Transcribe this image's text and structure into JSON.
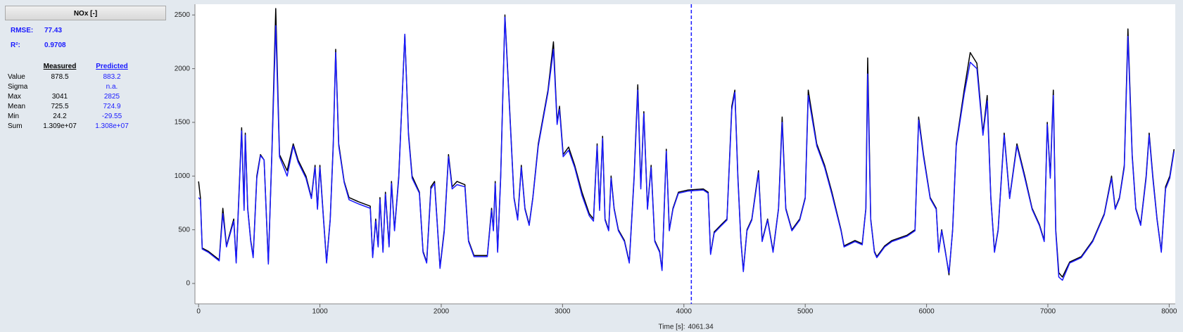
{
  "panel": {
    "title": "NOx [-]",
    "rmse_label": "RMSE:",
    "rmse": "77.43",
    "r2_label": "R²:",
    "r2": "0.9708",
    "columns": [
      "Measured",
      "Predicted"
    ],
    "rows": [
      [
        "Value",
        "878.5",
        "883.2"
      ],
      [
        "Sigma",
        "",
        "n.a."
      ],
      [
        "Max",
        "3041",
        "2825"
      ],
      [
        "Mean",
        "725.5",
        "724.9"
      ],
      [
        "Min",
        "24.2",
        "-29.55"
      ],
      [
        "Sum",
        "1.309e+07",
        "1.308e+07"
      ]
    ]
  },
  "chart_data": {
    "type": "line",
    "x_label": "Time [s]:",
    "cursor_x": 4061.34,
    "cursor_color": "#1a1aff",
    "xlim": [
      -30,
      8050
    ],
    "xticks": [
      0,
      1000,
      2000,
      3000,
      4000,
      5000,
      6000,
      7000,
      8000
    ],
    "ylim": [
      -190,
      2600
    ],
    "yticks": [
      0,
      500,
      1000,
      1500,
      2000,
      2500
    ],
    "grid": false,
    "x": [
      0,
      15,
      30,
      80,
      170,
      200,
      230,
      290,
      310,
      355,
      375,
      385,
      405,
      430,
      450,
      480,
      510,
      540,
      575,
      605,
      636,
      667,
      730,
      780,
      820,
      885,
      930,
      960,
      980,
      1000,
      1030,
      1055,
      1085,
      1110,
      1130,
      1155,
      1200,
      1240,
      1320,
      1415,
      1435,
      1460,
      1480,
      1495,
      1520,
      1540,
      1570,
      1590,
      1615,
      1650,
      1700,
      1730,
      1760,
      1820,
      1850,
      1880,
      1915,
      1945,
      1965,
      1990,
      2025,
      2060,
      2090,
      2130,
      2195,
      2225,
      2270,
      2380,
      2415,
      2430,
      2445,
      2465,
      2490,
      2525,
      2565,
      2600,
      2630,
      2660,
      2690,
      2725,
      2755,
      2800,
      2880,
      2925,
      2955,
      2975,
      3005,
      3050,
      3100,
      3160,
      3220,
      3255,
      3285,
      3305,
      3330,
      3350,
      3380,
      3400,
      3425,
      3460,
      3510,
      3550,
      3590,
      3620,
      3645,
      3670,
      3700,
      3730,
      3760,
      3800,
      3820,
      3855,
      3880,
      3910,
      3955,
      4035,
      4160,
      4200,
      4220,
      4250,
      4310,
      4355,
      4395,
      4420,
      4445,
      4470,
      4490,
      4520,
      4560,
      4615,
      4645,
      4690,
      4735,
      4780,
      4810,
      4840,
      4890,
      4955,
      5000,
      5025,
      5095,
      5160,
      5220,
      5295,
      5320,
      5410,
      5470,
      5500,
      5515,
      5540,
      5570,
      5590,
      5655,
      5715,
      5840,
      5905,
      5935,
      5975,
      6030,
      6080,
      6100,
      6125,
      6155,
      6185,
      6215,
      6245,
      6310,
      6360,
      6415,
      6465,
      6500,
      6530,
      6560,
      6590,
      6640,
      6685,
      6745,
      6810,
      6870,
      6930,
      6970,
      6995,
      7020,
      7045,
      7065,
      7090,
      7120,
      7180,
      7275,
      7370,
      7465,
      7525,
      7555,
      7590,
      7630,
      7660,
      7695,
      7725,
      7765,
      7810,
      7835,
      7865,
      7900,
      7935,
      7970,
      8005,
      8040
    ],
    "series": [
      {
        "color": "#000000",
        "values": [
          950,
          800,
          330,
          300,
          220,
          700,
          350,
          600,
          200,
          1450,
          700,
          1400,
          700,
          400,
          250,
          1000,
          1200,
          1150,
          190,
          1250,
          2560,
          1200,
          1050,
          1300,
          1150,
          1000,
          800,
          1100,
          700,
          1100,
          600,
          200,
          600,
          1300,
          2180,
          1300,
          950,
          800,
          760,
          720,
          250,
          600,
          350,
          800,
          300,
          850,
          350,
          950,
          500,
          1000,
          2320,
          1400,
          1000,
          850,
          300,
          200,
          900,
          950,
          600,
          150,
          500,
          1200,
          900,
          950,
          920,
          400,
          260,
          260,
          700,
          500,
          950,
          300,
          1000,
          2500,
          1600,
          800,
          600,
          1100,
          700,
          550,
          800,
          1300,
          1800,
          2250,
          1500,
          1650,
          1200,
          1270,
          1100,
          850,
          650,
          600,
          1300,
          700,
          1370,
          600,
          500,
          1000,
          700,
          500,
          400,
          200,
          1000,
          1850,
          900,
          1600,
          700,
          1100,
          400,
          300,
          130,
          1250,
          500,
          700,
          850,
          870,
          880,
          850,
          280,
          480,
          550,
          600,
          1650,
          1800,
          1000,
          400,
          120,
          500,
          600,
          1050,
          400,
          600,
          300,
          700,
          1550,
          700,
          500,
          600,
          800,
          1800,
          1300,
          1100,
          850,
          500,
          350,
          400,
          370,
          700,
          2100,
          600,
          300,
          250,
          350,
          400,
          450,
          500,
          1550,
          1200,
          800,
          700,
          300,
          500,
          300,
          80,
          500,
          1300,
          1800,
          2150,
          2050,
          1400,
          1750,
          800,
          300,
          500,
          1400,
          800,
          1300,
          1000,
          700,
          550,
          400,
          1500,
          1000,
          1800,
          500,
          100,
          60,
          200,
          250,
          400,
          650,
          1000,
          700,
          800,
          1100,
          2370,
          1200,
          700,
          550,
          1000,
          1400,
          1000,
          600,
          300,
          900,
          1000,
          1250
        ]
      },
      {
        "color": "#1a1aff",
        "values": [
          800,
          780,
          320,
          290,
          210,
          650,
          340,
          580,
          190,
          1420,
          680,
          1380,
          690,
          390,
          240,
          980,
          1190,
          1150,
          180,
          1230,
          2400,
          1180,
          1000,
          1280,
          1130,
          980,
          790,
          1080,
          690,
          1080,
          590,
          190,
          590,
          1280,
          2150,
          1280,
          940,
          780,
          740,
          700,
          240,
          580,
          340,
          780,
          290,
          830,
          340,
          930,
          490,
          980,
          2320,
          1380,
          980,
          840,
          290,
          190,
          880,
          930,
          590,
          140,
          480,
          1180,
          880,
          920,
          900,
          390,
          250,
          250,
          680,
          490,
          930,
          290,
          980,
          2480,
          1580,
          790,
          590,
          1080,
          690,
          540,
          790,
          1280,
          1780,
          2180,
          1480,
          1620,
          1180,
          1240,
          1080,
          820,
          630,
          580,
          1280,
          680,
          1350,
          590,
          490,
          980,
          690,
          490,
          390,
          190,
          980,
          1800,
          880,
          1580,
          690,
          1080,
          390,
          290,
          120,
          1230,
          490,
          690,
          840,
          860,
          870,
          840,
          270,
          470,
          540,
          590,
          1620,
          1780,
          980,
          390,
          110,
          490,
          590,
          1030,
          390,
          590,
          290,
          690,
          1500,
          690,
          490,
          590,
          790,
          1750,
          1280,
          1080,
          830,
          490,
          340,
          390,
          360,
          690,
          1950,
          590,
          290,
          240,
          340,
          390,
          440,
          490,
          1520,
          1180,
          790,
          690,
          290,
          490,
          290,
          100,
          490,
          1280,
          1760,
          2060,
          2000,
          1380,
          1700,
          790,
          290,
          490,
          1380,
          790,
          1280,
          980,
          690,
          540,
          390,
          1480,
          980,
          1750,
          480,
          60,
          30,
          190,
          240,
          390,
          640,
          980,
          690,
          790,
          1080,
          2300,
          1180,
          690,
          540,
          980,
          1380,
          980,
          590,
          290,
          880,
          980,
          1230
        ]
      }
    ]
  }
}
